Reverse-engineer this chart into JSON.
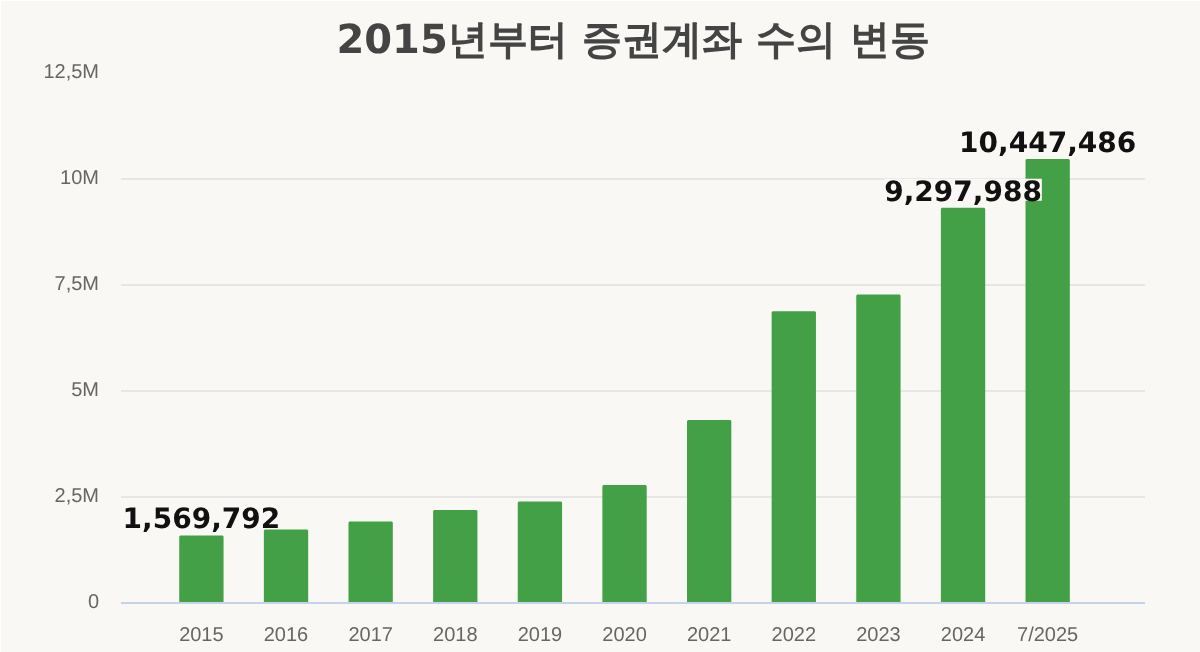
{
  "chart_data": {
    "type": "bar",
    "title": "2015년부터 증권계좌 수의 변동",
    "categories": [
      "2015",
      "2016",
      "2017",
      "2018",
      "2019",
      "2020",
      "2021",
      "2022",
      "2023",
      "2024",
      "7/2025"
    ],
    "values": [
      1569792,
      1710000,
      1900000,
      2170000,
      2370000,
      2760000,
      4290000,
      6860000,
      7250000,
      9297988,
      10447486
    ],
    "value_labels": [
      "1,569,792",
      null,
      null,
      null,
      null,
      null,
      null,
      null,
      null,
      "9,297,988",
      "10,447,486"
    ],
    "color": "#43a047",
    "ylim": [
      0,
      12500000
    ],
    "yticks": [
      {
        "value": 0,
        "label": "0"
      },
      {
        "value": 2500000,
        "label": "2,5M"
      },
      {
        "value": 5000000,
        "label": "5M"
      },
      {
        "value": 7500000,
        "label": "7,5M"
      },
      {
        "value": 10000000,
        "label": "10M"
      },
      {
        "value": 12500000,
        "label": "12,5M"
      }
    ],
    "grid": "y"
  }
}
